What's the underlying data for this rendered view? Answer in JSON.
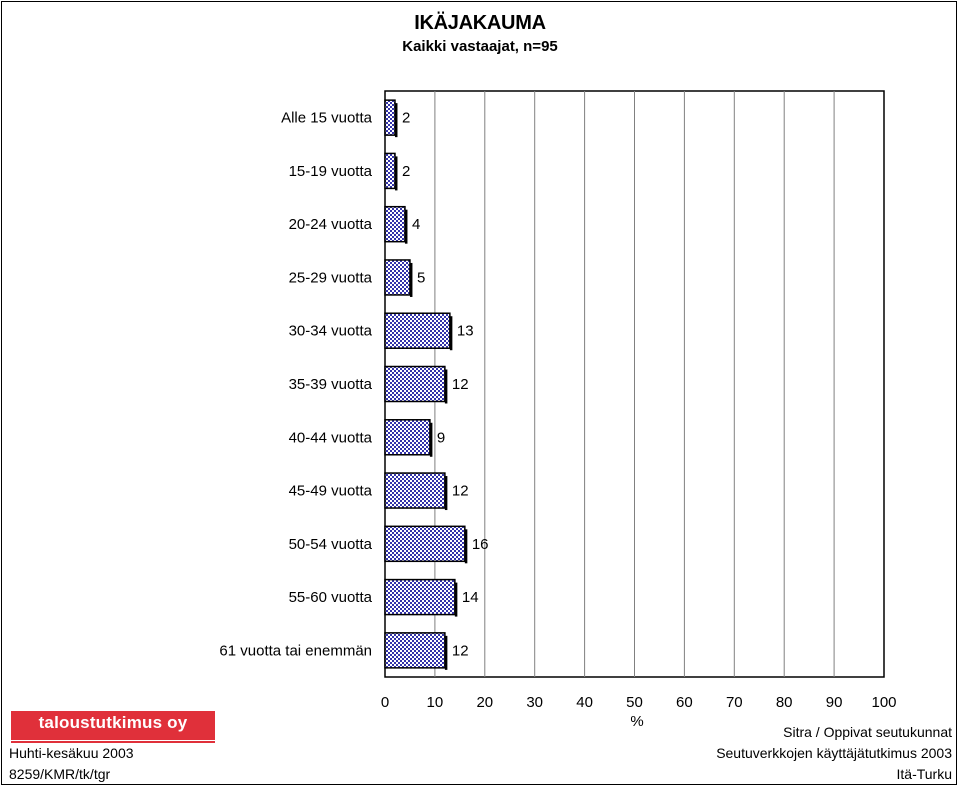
{
  "title": "IKÄJAKAUMA",
  "subtitle": "Kaikki vastaajat, n=95",
  "chart_data": {
    "type": "bar",
    "orientation": "horizontal",
    "categories": [
      "Alle 15 vuotta",
      "15-19 vuotta",
      "20-24 vuotta",
      "25-29 vuotta",
      "30-34 vuotta",
      "35-39 vuotta",
      "40-44 vuotta",
      "45-49 vuotta",
      "50-54 vuotta",
      "55-60 vuotta",
      "61 vuotta tai enemmän"
    ],
    "values": [
      2,
      2,
      4,
      5,
      13,
      12,
      9,
      12,
      16,
      14,
      12
    ],
    "xlabel": "%",
    "xlim": [
      0,
      100
    ],
    "xticks": [
      "0",
      "10",
      "20",
      "30",
      "40",
      "50",
      "60",
      "70",
      "80",
      "90",
      "100"
    ],
    "grid": true,
    "bar_color": "#3333aa"
  },
  "footer": {
    "logo_text": "taloustutkimus oy",
    "date": "Huhti-kesäkuu 2003",
    "code": "8259/KMR/tk/tgr",
    "right_line1": "Sitra / Oppivat seutukunnat",
    "right_line2": "Seutuverkkojen käyttäjätutkimus 2003",
    "right_line3": "Itä-Turku"
  }
}
